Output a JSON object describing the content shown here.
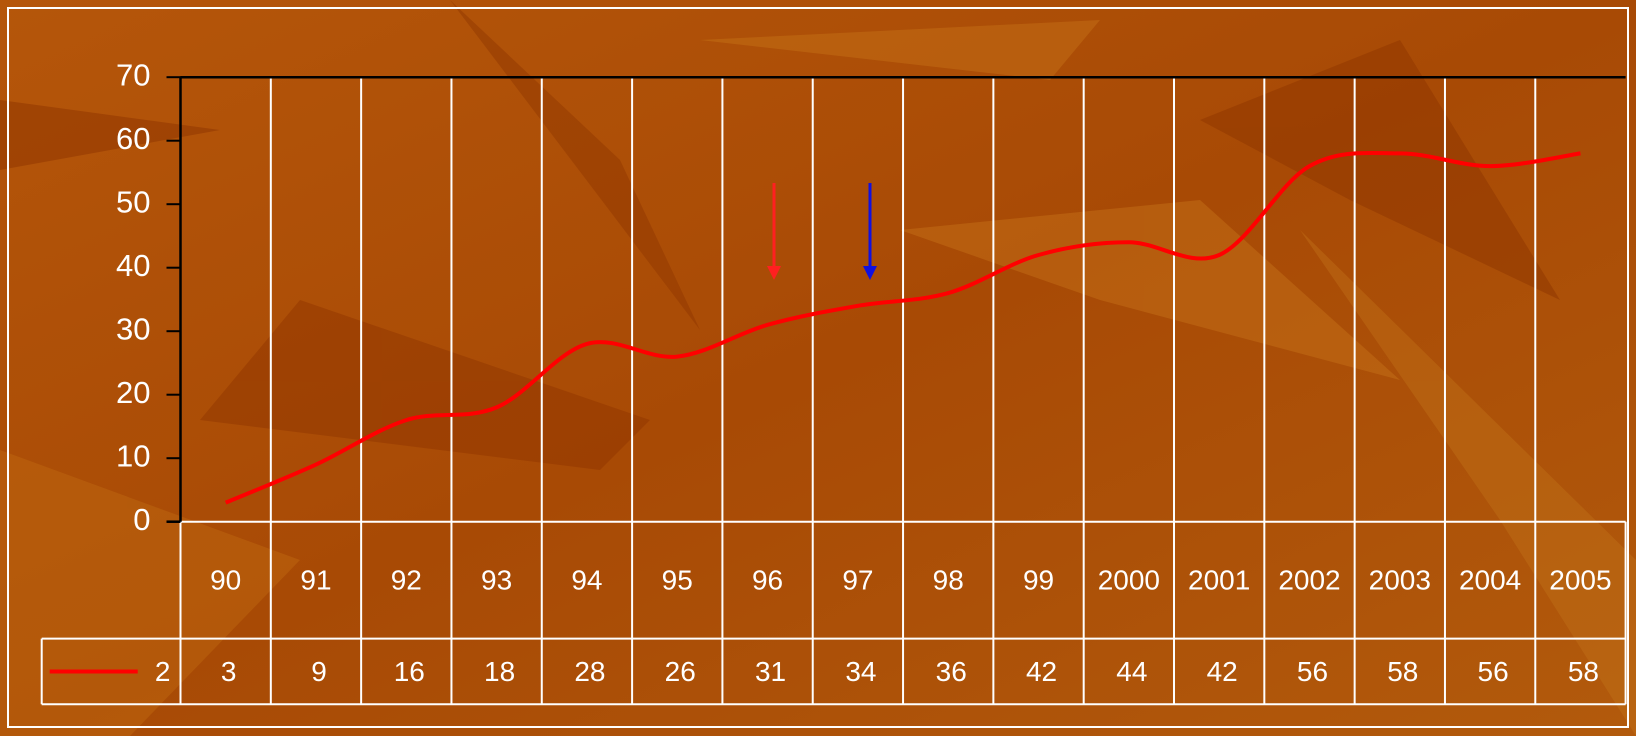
{
  "chart_data": {
    "type": "line",
    "categories": [
      "90",
      "91",
      "92",
      "93",
      "94",
      "95",
      "96",
      "97",
      "98",
      "99",
      "2000",
      "2001",
      "2002",
      "2003",
      "2004",
      "2005"
    ],
    "series": [
      {
        "name": "2",
        "color": "#ff0000",
        "values": [
          3,
          9,
          16,
          18,
          28,
          26,
          31,
          34,
          36,
          42,
          44,
          42,
          56,
          58,
          56,
          58
        ]
      }
    ],
    "ylim": [
      0,
      70
    ],
    "yticks": [
      0,
      10,
      20,
      30,
      40,
      50,
      60,
      70
    ],
    "grid": true,
    "data_table": true
  }
}
